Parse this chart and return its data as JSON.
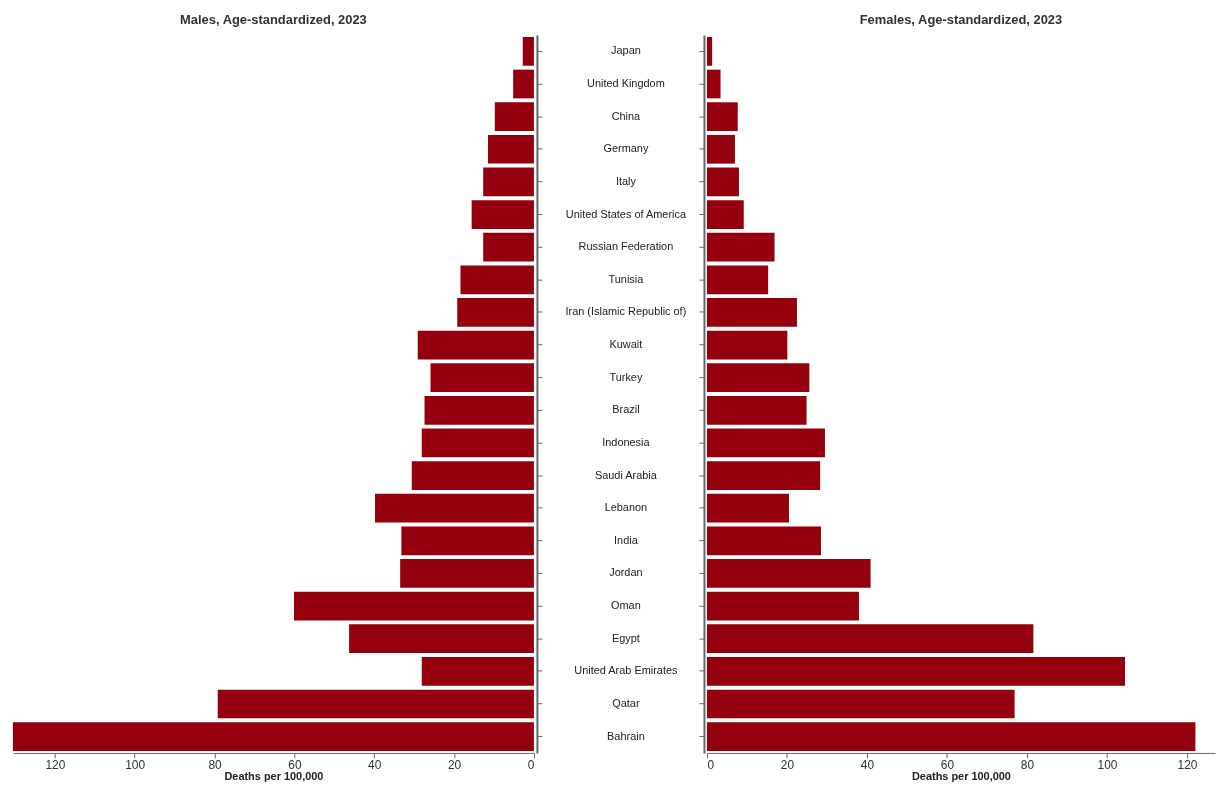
{
  "chart_data": [
    {
      "type": "bar",
      "orientation": "horizontal",
      "title": "Males, Age-standardized, 2023",
      "xlabel": "Deaths per 100,000",
      "color": "#95000e",
      "categories": [
        "Japan",
        "United Kingdom",
        "China",
        "Germany",
        "Italy",
        "United States of America",
        "Russian Federation",
        "Tunisia",
        "Iran (Islamic Republic of)",
        "Kuwait",
        "Turkey",
        "Brazil",
        "Indonesia",
        "Saudi Arabia",
        "Lebanon",
        "India",
        "Jordan",
        "Oman",
        "Egypt",
        "United Arab Emirates",
        "Qatar",
        "Bahrain"
      ],
      "values": [
        2.8,
        5.2,
        9.8,
        11.5,
        12.7,
        15.6,
        12.7,
        18.4,
        19.2,
        29.1,
        25.9,
        27.4,
        28.1,
        30.6,
        39.8,
        33.2,
        33.5,
        60.1,
        46.3,
        28.1,
        79.2,
        130.5
      ],
      "xlim": [
        130.5,
        0
      ],
      "xticks": [
        0,
        20,
        40,
        60,
        80,
        100,
        120
      ]
    },
    {
      "type": "bar",
      "orientation": "horizontal",
      "title": "Females, Age-standardized, 2023",
      "xlabel": "Deaths per 100,000",
      "tick_labels": "x",
      "color": "#95000e",
      "categories": [
        "Japan",
        "United Kingdom",
        "China",
        "Germany",
        "Italy",
        "United States of America",
        "Russian Federation",
        "Tunisia",
        "Iran (Islamic Republic of)",
        "Kuwait",
        "Turkey",
        "Brazil",
        "Indonesia",
        "Saudi Arabia",
        "Lebanon",
        "India",
        "Jordan",
        "Oman",
        "Egypt",
        "United Arab Emirates",
        "Qatar",
        "Bahrain"
      ],
      "values": [
        1.3,
        3.4,
        7.7,
        7.0,
        8.0,
        9.2,
        16.9,
        15.3,
        22.5,
        20.1,
        25.6,
        24.9,
        29.5,
        28.3,
        20.5,
        28.5,
        40.9,
        38.0,
        81.6,
        104.5,
        76.9,
        122.1
      ],
      "xlim": [
        0,
        127
      ],
      "xticks": [
        0,
        20,
        40,
        60,
        80,
        100,
        120
      ]
    }
  ]
}
